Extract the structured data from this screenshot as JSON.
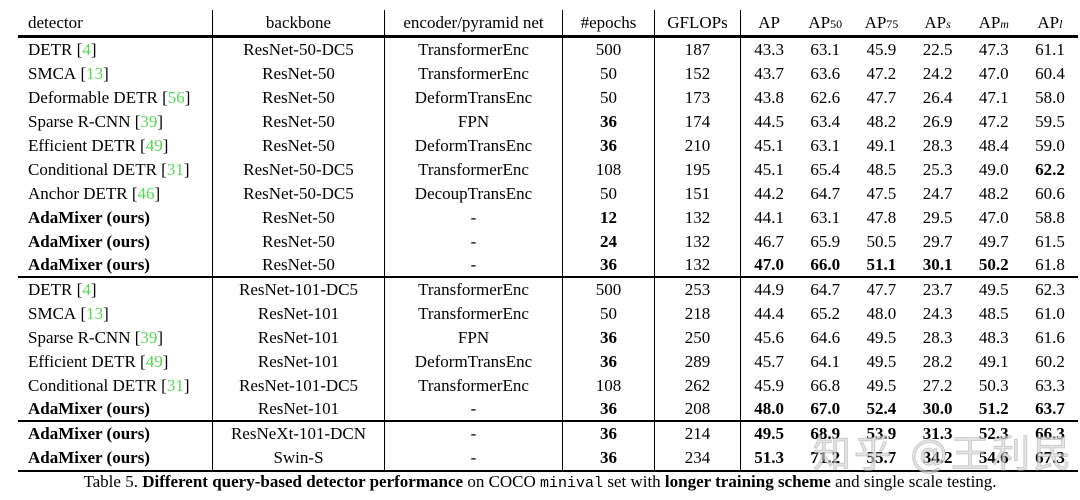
{
  "table": {
    "columns": [
      "detector",
      "backbone",
      "encoder/pyramid net",
      "#epochs",
      "GFLOPs"
    ],
    "metric_columns": [
      {
        "base": "AP",
        "sub": ""
      },
      {
        "base": "AP",
        "sub": "50"
      },
      {
        "base": "AP",
        "sub": "75"
      },
      {
        "base": "AP",
        "sub": "s"
      },
      {
        "base": "AP",
        "sub": "m"
      },
      {
        "base": "AP",
        "sub": "l"
      }
    ],
    "rows": [
      {
        "detector": "DETR",
        "cite": "4",
        "bold_name": false,
        "backbone": "ResNet-50-DC5",
        "encoder": "TransformerEnc",
        "epochs": "500",
        "epochs_bold": false,
        "gflops": "187",
        "metrics": [
          "43.3",
          "63.1",
          "45.9",
          "22.5",
          "47.3",
          "61.1"
        ],
        "bold_metrics": [
          0,
          0,
          0,
          0,
          0,
          0
        ],
        "group_end": false
      },
      {
        "detector": "SMCA",
        "cite": "13",
        "bold_name": false,
        "backbone": "ResNet-50",
        "encoder": "TransformerEnc",
        "epochs": "50",
        "epochs_bold": false,
        "gflops": "152",
        "metrics": [
          "43.7",
          "63.6",
          "47.2",
          "24.2",
          "47.0",
          "60.4"
        ],
        "bold_metrics": [
          0,
          0,
          0,
          0,
          0,
          0
        ],
        "group_end": false
      },
      {
        "detector": "Deformable DETR",
        "cite": "56",
        "bold_name": false,
        "backbone": "ResNet-50",
        "encoder": "DeformTransEnc",
        "epochs": "50",
        "epochs_bold": false,
        "gflops": "173",
        "metrics": [
          "43.8",
          "62.6",
          "47.7",
          "26.4",
          "47.1",
          "58.0"
        ],
        "bold_metrics": [
          0,
          0,
          0,
          0,
          0,
          0
        ],
        "group_end": false
      },
      {
        "detector": "Sparse R-CNN",
        "cite": "39",
        "bold_name": false,
        "backbone": "ResNet-50",
        "encoder": "FPN",
        "epochs": "36",
        "epochs_bold": true,
        "gflops": "174",
        "metrics": [
          "44.5",
          "63.4",
          "48.2",
          "26.9",
          "47.2",
          "59.5"
        ],
        "bold_metrics": [
          0,
          0,
          0,
          0,
          0,
          0
        ],
        "group_end": false
      },
      {
        "detector": "Efficient DETR",
        "cite": "49",
        "bold_name": false,
        "backbone": "ResNet-50",
        "encoder": "DeformTransEnc",
        "epochs": "36",
        "epochs_bold": true,
        "gflops": "210",
        "metrics": [
          "45.1",
          "63.1",
          "49.1",
          "28.3",
          "48.4",
          "59.0"
        ],
        "bold_metrics": [
          0,
          0,
          0,
          0,
          0,
          0
        ],
        "group_end": false
      },
      {
        "detector": "Conditional DETR",
        "cite": "31",
        "bold_name": false,
        "backbone": "ResNet-50-DC5",
        "encoder": "TransformerEnc",
        "epochs": "108",
        "epochs_bold": false,
        "gflops": "195",
        "metrics": [
          "45.1",
          "65.4",
          "48.5",
          "25.3",
          "49.0",
          "62.2"
        ],
        "bold_metrics": [
          0,
          0,
          0,
          0,
          0,
          1
        ],
        "group_end": false
      },
      {
        "detector": "Anchor DETR",
        "cite": "46",
        "bold_name": false,
        "backbone": "ResNet-50-DC5",
        "encoder": "DecoupTransEnc",
        "epochs": "50",
        "epochs_bold": false,
        "gflops": "151",
        "metrics": [
          "44.2",
          "64.7",
          "47.5",
          "24.7",
          "48.2",
          "60.6"
        ],
        "bold_metrics": [
          0,
          0,
          0,
          0,
          0,
          0
        ],
        "group_end": false
      },
      {
        "detector": "AdaMixer (ours)",
        "cite": "",
        "bold_name": true,
        "backbone": "ResNet-50",
        "encoder": "-",
        "epochs": "12",
        "epochs_bold": true,
        "gflops": "132",
        "metrics": [
          "44.1",
          "63.1",
          "47.8",
          "29.5",
          "47.0",
          "58.8"
        ],
        "bold_metrics": [
          0,
          0,
          0,
          0,
          0,
          0
        ],
        "group_end": false
      },
      {
        "detector": "AdaMixer (ours)",
        "cite": "",
        "bold_name": true,
        "backbone": "ResNet-50",
        "encoder": "-",
        "epochs": "24",
        "epochs_bold": true,
        "gflops": "132",
        "metrics": [
          "46.7",
          "65.9",
          "50.5",
          "29.7",
          "49.7",
          "61.5"
        ],
        "bold_metrics": [
          0,
          0,
          0,
          0,
          0,
          0
        ],
        "group_end": false
      },
      {
        "detector": "AdaMixer (ours)",
        "cite": "",
        "bold_name": true,
        "backbone": "ResNet-50",
        "encoder": "-",
        "epochs": "36",
        "epochs_bold": true,
        "gflops": "132",
        "metrics": [
          "47.0",
          "66.0",
          "51.1",
          "30.1",
          "50.2",
          "61.8"
        ],
        "bold_metrics": [
          1,
          1,
          1,
          1,
          1,
          0
        ],
        "group_end": true
      },
      {
        "detector": "DETR",
        "cite": "4",
        "bold_name": false,
        "backbone": "ResNet-101-DC5",
        "encoder": "TransformerEnc",
        "epochs": "500",
        "epochs_bold": false,
        "gflops": "253",
        "metrics": [
          "44.9",
          "64.7",
          "47.7",
          "23.7",
          "49.5",
          "62.3"
        ],
        "bold_metrics": [
          0,
          0,
          0,
          0,
          0,
          0
        ],
        "group_end": false
      },
      {
        "detector": "SMCA",
        "cite": "13",
        "bold_name": false,
        "backbone": "ResNet-101",
        "encoder": "TransformerEnc",
        "epochs": "50",
        "epochs_bold": false,
        "gflops": "218",
        "metrics": [
          "44.4",
          "65.2",
          "48.0",
          "24.3",
          "48.5",
          "61.0"
        ],
        "bold_metrics": [
          0,
          0,
          0,
          0,
          0,
          0
        ],
        "group_end": false
      },
      {
        "detector": "Sparse R-CNN",
        "cite": "39",
        "bold_name": false,
        "backbone": "ResNet-101",
        "encoder": "FPN",
        "epochs": "36",
        "epochs_bold": true,
        "gflops": "250",
        "metrics": [
          "45.6",
          "64.6",
          "49.5",
          "28.3",
          "48.3",
          "61.6"
        ],
        "bold_metrics": [
          0,
          0,
          0,
          0,
          0,
          0
        ],
        "group_end": false
      },
      {
        "detector": "Efficient DETR",
        "cite": "49",
        "bold_name": false,
        "backbone": "ResNet-101",
        "encoder": "DeformTransEnc",
        "epochs": "36",
        "epochs_bold": true,
        "gflops": "289",
        "metrics": [
          "45.7",
          "64.1",
          "49.5",
          "28.2",
          "49.1",
          "60.2"
        ],
        "bold_metrics": [
          0,
          0,
          0,
          0,
          0,
          0
        ],
        "group_end": false
      },
      {
        "detector": "Conditional DETR",
        "cite": "31",
        "bold_name": false,
        "backbone": "ResNet-101-DC5",
        "encoder": "TransformerEnc",
        "epochs": "108",
        "epochs_bold": false,
        "gflops": "262",
        "metrics": [
          "45.9",
          "66.8",
          "49.5",
          "27.2",
          "50.3",
          "63.3"
        ],
        "bold_metrics": [
          0,
          0,
          0,
          0,
          0,
          0
        ],
        "group_end": false
      },
      {
        "detector": "AdaMixer (ours)",
        "cite": "",
        "bold_name": true,
        "backbone": "ResNet-101",
        "encoder": "-",
        "epochs": "36",
        "epochs_bold": true,
        "gflops": "208",
        "metrics": [
          "48.0",
          "67.0",
          "52.4",
          "30.0",
          "51.2",
          "63.7"
        ],
        "bold_metrics": [
          1,
          1,
          1,
          1,
          1,
          1
        ],
        "group_end": true
      },
      {
        "detector": "AdaMixer (ours)",
        "cite": "",
        "bold_name": true,
        "backbone": "ResNeXt-101-DCN",
        "encoder": "-",
        "epochs": "36",
        "epochs_bold": true,
        "gflops": "214",
        "metrics": [
          "49.5",
          "68.9",
          "53.9",
          "31.3",
          "52.3",
          "66.3"
        ],
        "bold_metrics": [
          1,
          1,
          1,
          1,
          1,
          1
        ],
        "group_end": false
      },
      {
        "detector": "AdaMixer (ours)",
        "cite": "",
        "bold_name": true,
        "backbone": "Swin-S",
        "encoder": "-",
        "epochs": "36",
        "epochs_bold": true,
        "gflops": "234",
        "metrics": [
          "51.3",
          "71.2",
          "55.7",
          "34.2",
          "54.6",
          "67.3"
        ],
        "bold_metrics": [
          1,
          1,
          1,
          1,
          1,
          1
        ],
        "group_end": false
      }
    ]
  },
  "caption": {
    "segments": [
      {
        "text": "Table 5. ",
        "bold": false,
        "mono": false
      },
      {
        "text": "Different query-based detector performance",
        "bold": true,
        "mono": false
      },
      {
        "text": " on COCO ",
        "bold": false,
        "mono": false
      },
      {
        "text": "minival",
        "bold": false,
        "mono": true
      },
      {
        "text": " set with ",
        "bold": false,
        "mono": false
      },
      {
        "text": "longer training scheme",
        "bold": true,
        "mono": false
      },
      {
        "text": " and single scale testing.",
        "bold": false,
        "mono": false
      }
    ]
  },
  "watermark": {
    "text": "知乎 @王利民"
  },
  "colors": {
    "cite_green": "#53d853",
    "rule_black": "#000000",
    "background": "#ffffff"
  }
}
